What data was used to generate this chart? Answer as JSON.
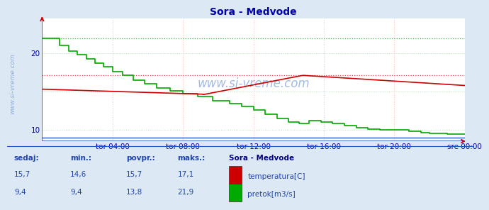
{
  "title": "Sora - Medvode",
  "title_color": "#0000aa",
  "bg_color": "#dce9f5",
  "plot_bg_color": "#ffffff",
  "grid_color_v": "#ffbbbb",
  "grid_color_h": "#ffbbbb",
  "grid_color_h_green": "#bbddbb",
  "xlabel_color": "#0000aa",
  "ylabel_color": "#0000aa",
  "xlim": [
    0,
    288
  ],
  "ylim": [
    8.5,
    24.5
  ],
  "yticks": [
    10,
    20
  ],
  "xtick_labels": [
    "tor 04:00",
    "tor 08:00",
    "tor 12:00",
    "tor 16:00",
    "tor 20:00",
    "sre 00:00"
  ],
  "xtick_positions": [
    48,
    96,
    144,
    192,
    240,
    288
  ],
  "temp_color": "#cc0000",
  "flow_color": "#00aa00",
  "height_color": "#2255cc",
  "watermark_color": "#4477cc",
  "hline_temp_max": 17.1,
  "hline_flow_max": 21.9,
  "hline_dotted_color_red": "#ee4444",
  "hline_dotted_color_green": "#44bb44",
  "legend_title": "Sora - Medvode",
  "legend_title_color": "#000080",
  "legend_color": "#2244aa",
  "sedaj_label": "sedaj:",
  "min_label": "min.:",
  "povpr_label": "povpr.:",
  "maks_label": "maks.:",
  "temp_sedaj": "15,7",
  "temp_min": "14,6",
  "temp_povpr": "15,7",
  "temp_maks": "17,1",
  "flow_sedaj": "9,4",
  "flow_min": "9,4",
  "flow_povpr": "13,8",
  "flow_maks": "21,9",
  "axis_color": "#2255cc",
  "arrow_color": "#cc0000"
}
